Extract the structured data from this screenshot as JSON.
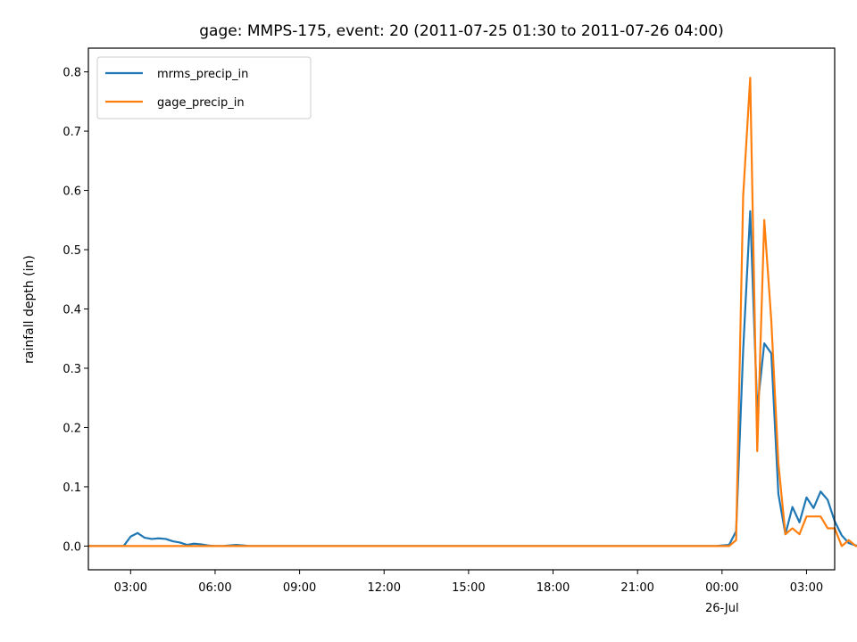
{
  "chart_data": {
    "type": "line",
    "title": "gage: MMPS-175, event: 20 (2011-07-25 01:30 to 2011-07-26 04:00)",
    "xlabel": "",
    "ylabel": "rainfall depth (in)",
    "x_start": "2011-07-25 01:30",
    "x_step_minutes": 15,
    "x_ticks": [
      {
        "time": "2011-07-25 03:00",
        "label": "03:00"
      },
      {
        "time": "2011-07-25 06:00",
        "label": "06:00"
      },
      {
        "time": "2011-07-25 09:00",
        "label": "09:00"
      },
      {
        "time": "2011-07-25 12:00",
        "label": "12:00"
      },
      {
        "time": "2011-07-25 15:00",
        "label": "15:00"
      },
      {
        "time": "2011-07-25 18:00",
        "label": "18:00"
      },
      {
        "time": "2011-07-25 21:00",
        "label": "21:00"
      },
      {
        "time": "2011-07-26 00:00",
        "label": "00:00",
        "sublabel": "26-Jul"
      },
      {
        "time": "2011-07-26 03:00",
        "label": "03:00"
      }
    ],
    "xlim": [
      "2011-07-25 01:30",
      "2011-07-26 04:00"
    ],
    "ylim": [
      -0.04,
      0.84
    ],
    "yticks": [
      0.0,
      0.1,
      0.2,
      0.3,
      0.4,
      0.5,
      0.6,
      0.7,
      0.8
    ],
    "legend_position": "top-left",
    "grid": false,
    "series": [
      {
        "name": "mrms_precip_in",
        "color": "#1f77b4",
        "values": [
          0,
          0,
          0,
          0,
          0,
          0,
          0.016,
          0.022,
          0.014,
          0.012,
          0.013,
          0.012,
          0.008,
          0.006,
          0.002,
          0.004,
          0.003,
          0.001,
          0,
          0,
          0.001,
          0.002,
          0.001,
          0,
          0,
          0,
          0,
          0,
          0,
          0,
          0,
          0,
          0,
          0,
          0,
          0,
          0,
          0,
          0,
          0,
          0,
          0,
          0,
          0,
          0,
          0,
          0,
          0,
          0,
          0,
          0,
          0,
          0,
          0,
          0,
          0,
          0,
          0,
          0,
          0,
          0,
          0,
          0,
          0,
          0,
          0,
          0,
          0,
          0,
          0,
          0,
          0,
          0,
          0,
          0,
          0,
          0,
          0,
          0,
          0,
          0,
          0,
          0,
          0,
          0,
          0,
          0,
          0,
          0,
          0,
          0.001,
          0.002,
          0.025,
          0.33,
          0.565,
          0.23,
          0.342,
          0.325,
          0.088,
          0.02,
          0.066,
          0.04,
          0.082,
          0.064,
          0.092,
          0.078,
          0.042,
          0.018,
          0.005,
          0.001,
          0
        ]
      },
      {
        "name": "gage_precip_in",
        "color": "#ff7f0e",
        "values": [
          0,
          0,
          0,
          0,
          0,
          0,
          0,
          0,
          0,
          0,
          0,
          0,
          0,
          0,
          0,
          0,
          0,
          0,
          0,
          0,
          0,
          0,
          0,
          0,
          0,
          0,
          0,
          0,
          0,
          0,
          0,
          0,
          0,
          0,
          0,
          0,
          0,
          0,
          0,
          0,
          0,
          0,
          0,
          0,
          0,
          0,
          0,
          0,
          0,
          0,
          0,
          0,
          0,
          0,
          0,
          0,
          0,
          0,
          0,
          0,
          0,
          0,
          0,
          0,
          0,
          0,
          0,
          0,
          0,
          0,
          0,
          0,
          0,
          0,
          0,
          0,
          0,
          0,
          0,
          0,
          0,
          0,
          0,
          0,
          0,
          0,
          0,
          0,
          0,
          0,
          0,
          0,
          0.01,
          0.59,
          0.79,
          0.16,
          0.55,
          0.38,
          0.14,
          0.02,
          0.03,
          0.02,
          0.05,
          0.05,
          0.05,
          0.03,
          0.03,
          0,
          0.01,
          0,
          0
        ]
      }
    ]
  }
}
